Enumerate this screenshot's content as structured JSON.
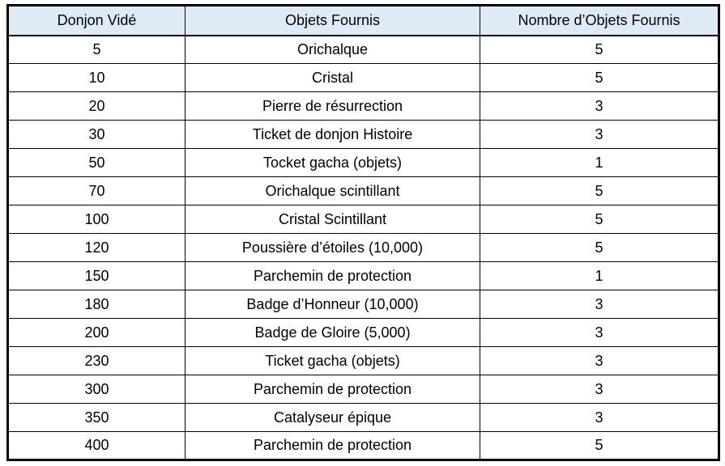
{
  "table": {
    "headers": {
      "donjon": "Donjon Vidé",
      "objet": "Objets Fournis",
      "nombre": "Nombre d’Objets Fournis"
    },
    "rows": [
      {
        "donjon": "5",
        "objet": "Orichalque",
        "nombre": "5"
      },
      {
        "donjon": "10",
        "objet": "Cristal",
        "nombre": "5"
      },
      {
        "donjon": "20",
        "objet": "Pierre de résurrection",
        "nombre": "3"
      },
      {
        "donjon": "30",
        "objet": "Ticket de donjon Histoire",
        "nombre": "3"
      },
      {
        "donjon": "50",
        "objet": "Tocket gacha (objets)",
        "nombre": "1"
      },
      {
        "donjon": "70",
        "objet": "Orichalque scintillant",
        "nombre": "5"
      },
      {
        "donjon": "100",
        "objet": "Cristal Scintillant",
        "nombre": "5"
      },
      {
        "donjon": "120",
        "objet": "Poussière d’étoiles (10,000)",
        "nombre": "5"
      },
      {
        "donjon": "150",
        "objet": "Parchemin de protection",
        "nombre": "1"
      },
      {
        "donjon": "180",
        "objet": "Badge d’Honneur (10,000)",
        "nombre": "3"
      },
      {
        "donjon": "200",
        "objet": "Badge de Gloire (5,000)",
        "nombre": "3"
      },
      {
        "donjon": "230",
        "objet": "Ticket gacha (objets)",
        "nombre": "3"
      },
      {
        "donjon": "300",
        "objet": "Parchemin de protection",
        "nombre": "3"
      },
      {
        "donjon": "350",
        "objet": "Catalyseur épique",
        "nombre": "3"
      },
      {
        "donjon": "400",
        "objet": "Parchemin de protection",
        "nombre": "5"
      }
    ],
    "colors": {
      "header_background": "#DEEBF7",
      "border": "#000000",
      "text": "#000000",
      "background": "#FFFFFF"
    }
  }
}
